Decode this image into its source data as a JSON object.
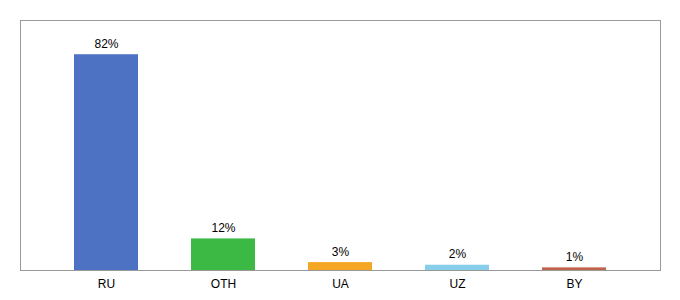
{
  "chart_data": {
    "type": "bar",
    "categories": [
      "RU",
      "OTH",
      "UA",
      "UZ",
      "BY"
    ],
    "values": [
      82,
      12,
      3,
      2,
      1
    ],
    "value_labels": [
      "82%",
      "12%",
      "3%",
      "2%",
      "1%"
    ],
    "colors": [
      "#4d72c4",
      "#3cb844",
      "#f5a623",
      "#87ceeb",
      "#c0634a"
    ],
    "ylim": [
      0,
      95
    ],
    "data_labels": true,
    "tick_labels": "x"
  }
}
